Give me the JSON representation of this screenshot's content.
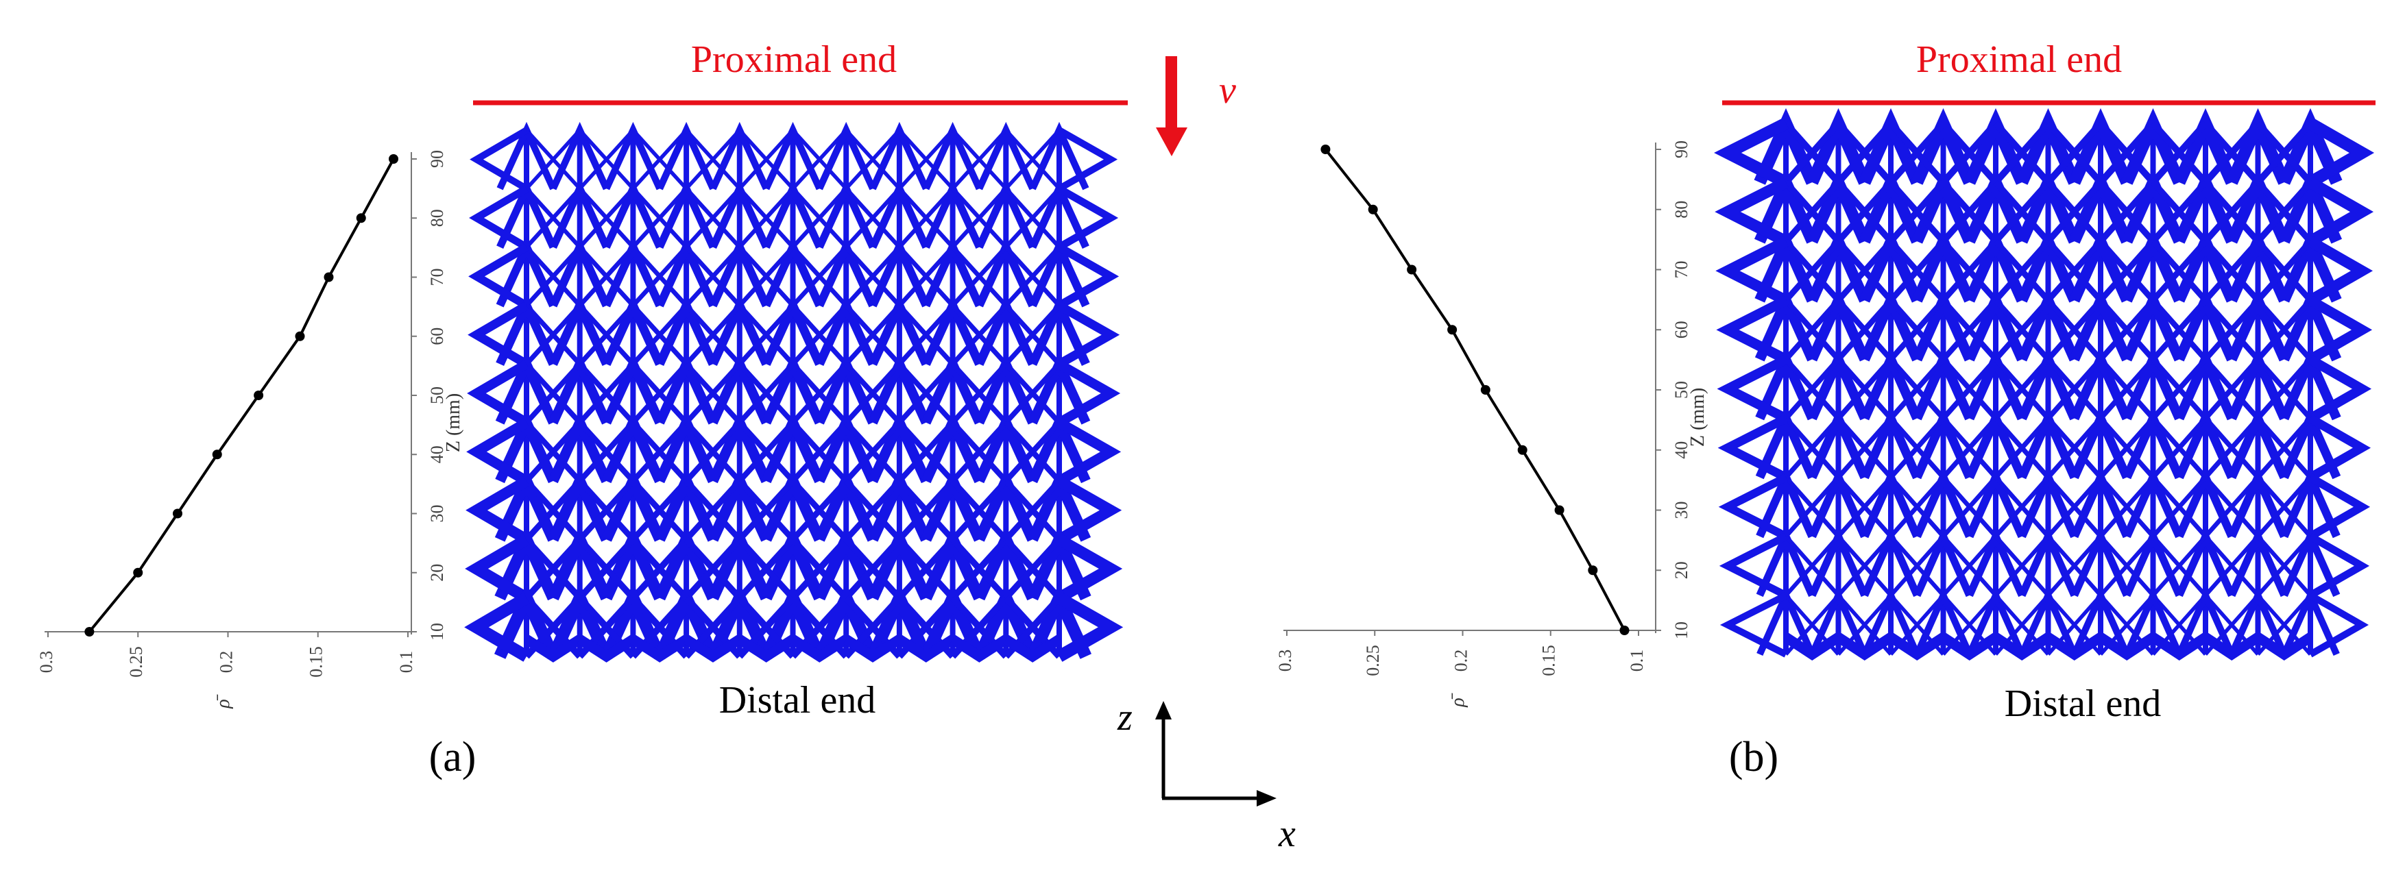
{
  "colors": {
    "lattice": "#1515e6",
    "accent": "#e8101a",
    "curve": "#000000"
  },
  "labels": {
    "proximal_a": "Proximal end",
    "proximal_b": "Proximal end",
    "distal_a": "Distal end",
    "distal_b": "Distal end",
    "panel_a": "(a)",
    "panel_b": "(b)",
    "velocity": "v",
    "axis_z": "z",
    "axis_x": "x"
  },
  "chart_data": [
    {
      "type": "line",
      "panel": "(a)",
      "ylabel": "Z (mm)",
      "xlabel": "ρ̄",
      "x_reversed": true,
      "xlim": [
        0.1,
        0.3
      ],
      "ylim": [
        10,
        90
      ],
      "x_ticks": [
        "0.3",
        "0.25",
        "0.2",
        "0.15",
        "0.1"
      ],
      "y_ticks": [
        "10",
        "20",
        "30",
        "40",
        "50",
        "60",
        "70",
        "80",
        "90"
      ],
      "points": [
        {
          "rho": 0.277,
          "z": 10
        },
        {
          "rho": 0.25,
          "z": 20
        },
        {
          "rho": 0.228,
          "z": 30
        },
        {
          "rho": 0.206,
          "z": 40
        },
        {
          "rho": 0.183,
          "z": 50
        },
        {
          "rho": 0.16,
          "z": 60
        },
        {
          "rho": 0.144,
          "z": 70
        },
        {
          "rho": 0.126,
          "z": 80
        },
        {
          "rho": 0.108,
          "z": 90
        }
      ]
    },
    {
      "type": "line",
      "panel": "(b)",
      "ylabel": "Z (mm)",
      "xlabel": "ρ̄",
      "x_reversed": true,
      "xlim": [
        0.1,
        0.3
      ],
      "ylim": [
        10,
        90
      ],
      "x_ticks": [
        "0.3",
        "0.25",
        "0.2",
        "0.15",
        "0.1"
      ],
      "y_ticks": [
        "10",
        "20",
        "30",
        "40",
        "50",
        "60",
        "70",
        "80",
        "90"
      ],
      "points": [
        {
          "rho": 0.108,
          "z": 10
        },
        {
          "rho": 0.126,
          "z": 20
        },
        {
          "rho": 0.145,
          "z": 30
        },
        {
          "rho": 0.166,
          "z": 40
        },
        {
          "rho": 0.187,
          "z": 50
        },
        {
          "rho": 0.206,
          "z": 60
        },
        {
          "rho": 0.229,
          "z": 70
        },
        {
          "rho": 0.251,
          "z": 80
        },
        {
          "rho": 0.278,
          "z": 90
        }
      ]
    }
  ],
  "lattices": [
    {
      "panel": "(a)",
      "columns": 11,
      "layers": 9,
      "gradient": "denser-at-distal"
    },
    {
      "panel": "(b)",
      "columns": 11,
      "layers": 9,
      "gradient": "denser-at-proximal"
    }
  ]
}
